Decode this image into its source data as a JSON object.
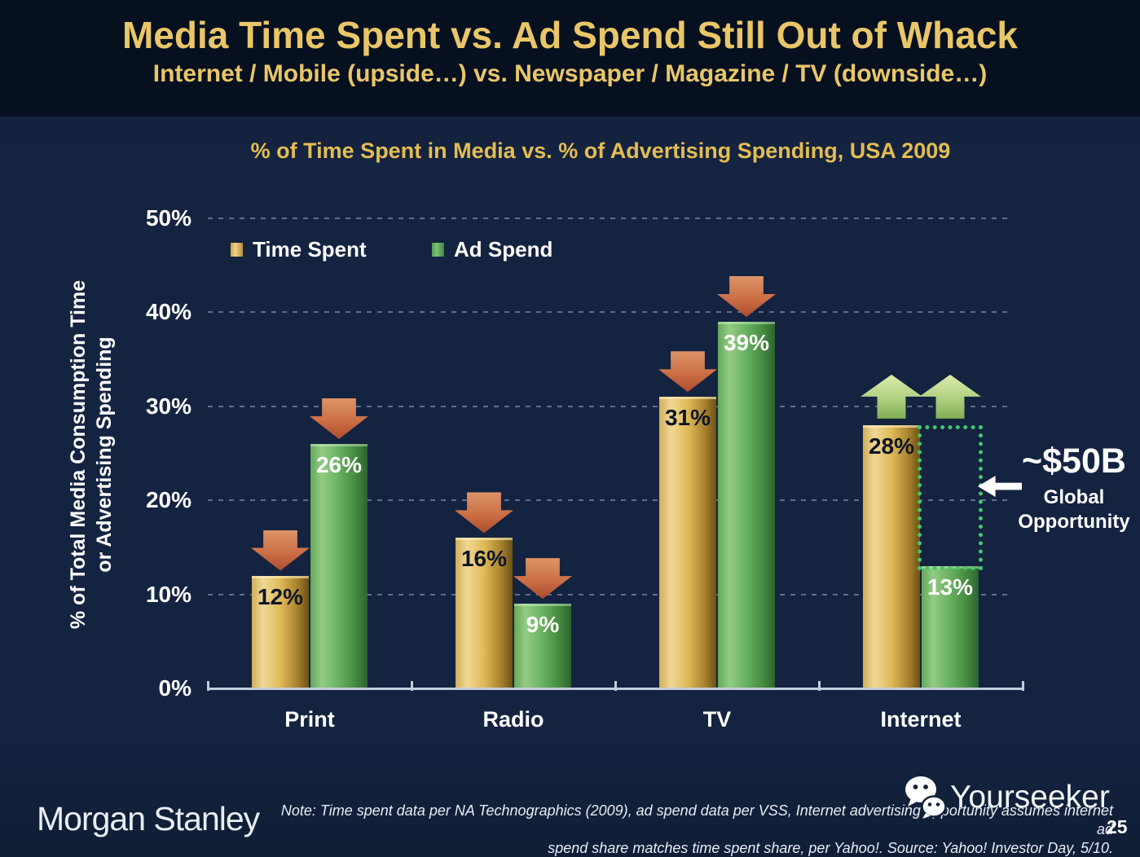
{
  "slide": {
    "title": "Media Time Spent vs. Ad Spend Still Out of Whack",
    "subtitle": "Internet / Mobile (upside…) vs. Newspaper / Magazine / TV (downside…)"
  },
  "chart_data": {
    "type": "bar",
    "title": "% of Time Spent in Media vs. % of Advertising Spending, USA 2009",
    "categories": [
      "Print",
      "Radio",
      "TV",
      "Internet"
    ],
    "series": [
      {
        "name": "Time Spent",
        "values": [
          12,
          16,
          31,
          28
        ],
        "color": "#ddb75a"
      },
      {
        "name": "Ad Spend",
        "values": [
          26,
          9,
          39,
          13
        ],
        "color": "#5faa5c"
      }
    ],
    "value_labels": [
      [
        "12%",
        "26%"
      ],
      [
        "16%",
        "9%"
      ],
      [
        "31%",
        "39%"
      ],
      [
        "28%",
        "13%"
      ]
    ],
    "arrows": [
      [
        "down",
        "down"
      ],
      [
        "down",
        "down"
      ],
      [
        "down",
        "down"
      ],
      [
        "up",
        "up"
      ]
    ],
    "ylabel": "% of Total Media Consumption Time or Advertising Spending",
    "ylabel_lines": [
      "% of Total Media Consumption Time",
      "or Advertising Spending"
    ],
    "yticks": [
      "0%",
      "10%",
      "20%",
      "30%",
      "40%",
      "50%"
    ],
    "ylim": [
      0,
      50
    ],
    "grid": "dashed horizontal gridlines every 10%",
    "legend_position": "top-left inside plot",
    "annotation": {
      "label": "~$50B",
      "sublabel_lines": [
        "Global",
        "Opportunity"
      ]
    },
    "opportunity": {
      "category": "Internet",
      "from_value": 13,
      "to_value": 28
    }
  },
  "colors": {
    "title_gold": "#e9c668",
    "time_spent_bar": "#ddb75a",
    "ad_spend_bar": "#5faa5c",
    "arrow_down_red": "#c2613d",
    "arrow_up_green": "#a9c878",
    "opportunity_outline": "#43c86c",
    "header_background": "#06101f",
    "body_background": "#142340"
  },
  "footer": {
    "brand": "Morgan Stanley",
    "note_lines": [
      "Note: Time spent data per NA Technographics (2009), ad spend data per VSS, Internet advertising opportunity assumes internet ad",
      "spend share matches time spent share, per Yahoo!. Source: Yahoo! Investor Day, 5/10."
    ],
    "watermark": "Yourseeker",
    "page_number": "25"
  }
}
